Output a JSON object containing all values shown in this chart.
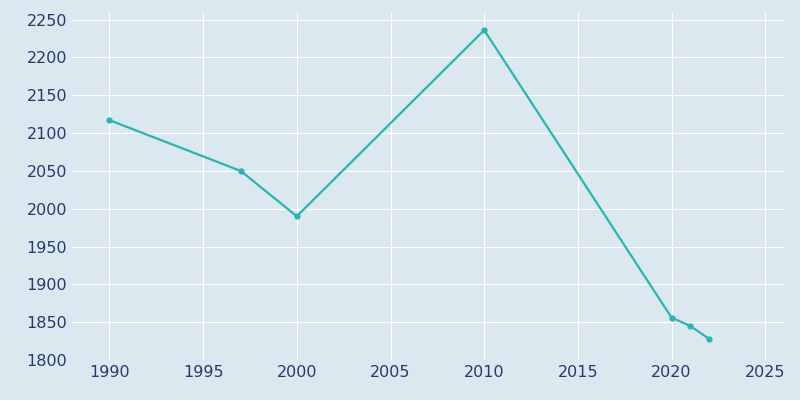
{
  "years": [
    1990,
    1997,
    2000,
    2010,
    2020,
    2021,
    2022
  ],
  "population": [
    2117,
    2050,
    1990,
    2236,
    1856,
    1845,
    1828
  ],
  "line_color": "#2ab5b0",
  "marker_color": "#2ab5b0",
  "bg_color": "#dce8f0",
  "plot_bg_color": "#dce8f0",
  "grid_color": "#ffffff",
  "text_color": "#253a6e",
  "xlim": [
    1988,
    2026
  ],
  "ylim": [
    1800,
    2260
  ],
  "xticks": [
    1990,
    1995,
    2000,
    2005,
    2010,
    2015,
    2020,
    2025
  ],
  "yticks": [
    1800,
    1850,
    1900,
    1950,
    2000,
    2050,
    2100,
    2150,
    2200,
    2250
  ],
  "linewidth": 1.6,
  "markersize": 3.5,
  "tick_fontsize": 11.5
}
